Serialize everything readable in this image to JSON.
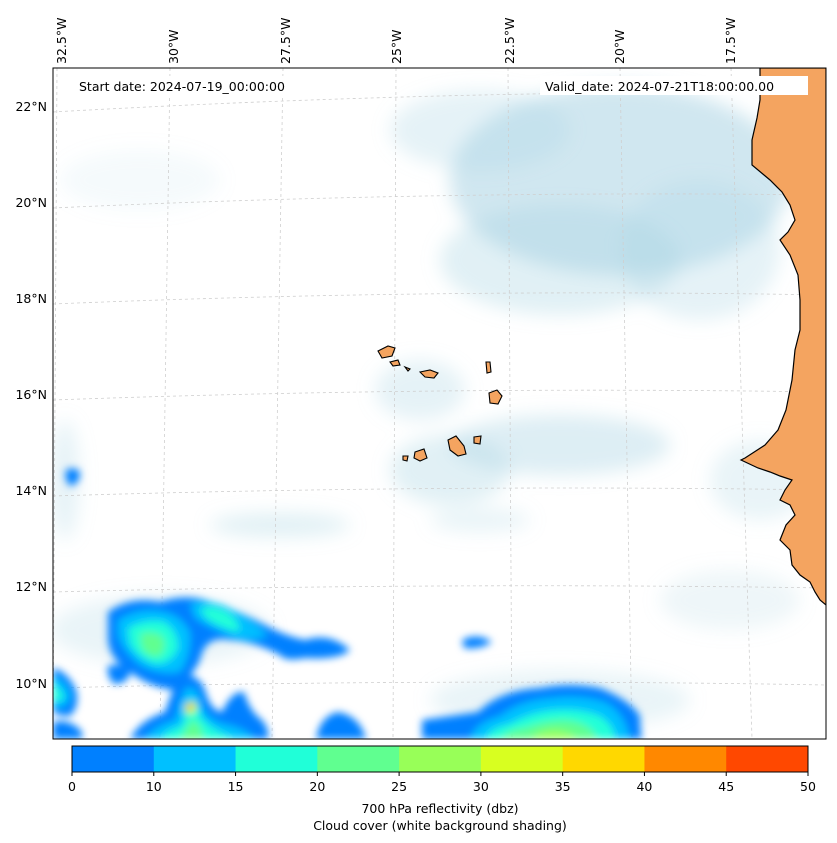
{
  "header": {
    "start_date": "Start date: 2024-07-19_00:00:00",
    "valid_date": "Valid_date: 2024-07-21T18:00:00.00"
  },
  "map": {
    "lon_labels": [
      "32.5°W",
      "30°W",
      "27.5°W",
      "25°W",
      "22.5°W",
      "20°W",
      "17.5°W"
    ],
    "lat_labels": [
      "22°N",
      "20°N",
      "18°N",
      "16°N",
      "14°N",
      "12°N",
      "10°N"
    ],
    "land_color": "#f4a460",
    "cloud_color": "#a9d4e3",
    "gridlines": true
  },
  "colorbar": {
    "ticks": [
      "0",
      "10",
      "15",
      "20",
      "25",
      "30",
      "35",
      "40",
      "45",
      "50"
    ],
    "colors": [
      "#0080ff",
      "#00c0ff",
      "#20ffd8",
      "#60ff90",
      "#98ff58",
      "#d8ff20",
      "#ffd800",
      "#ff8800",
      "#ff4800"
    ],
    "label_line1": "700 hPa reflectivity (dbz)",
    "label_line2": "Cloud cover (white background shading)"
  }
}
